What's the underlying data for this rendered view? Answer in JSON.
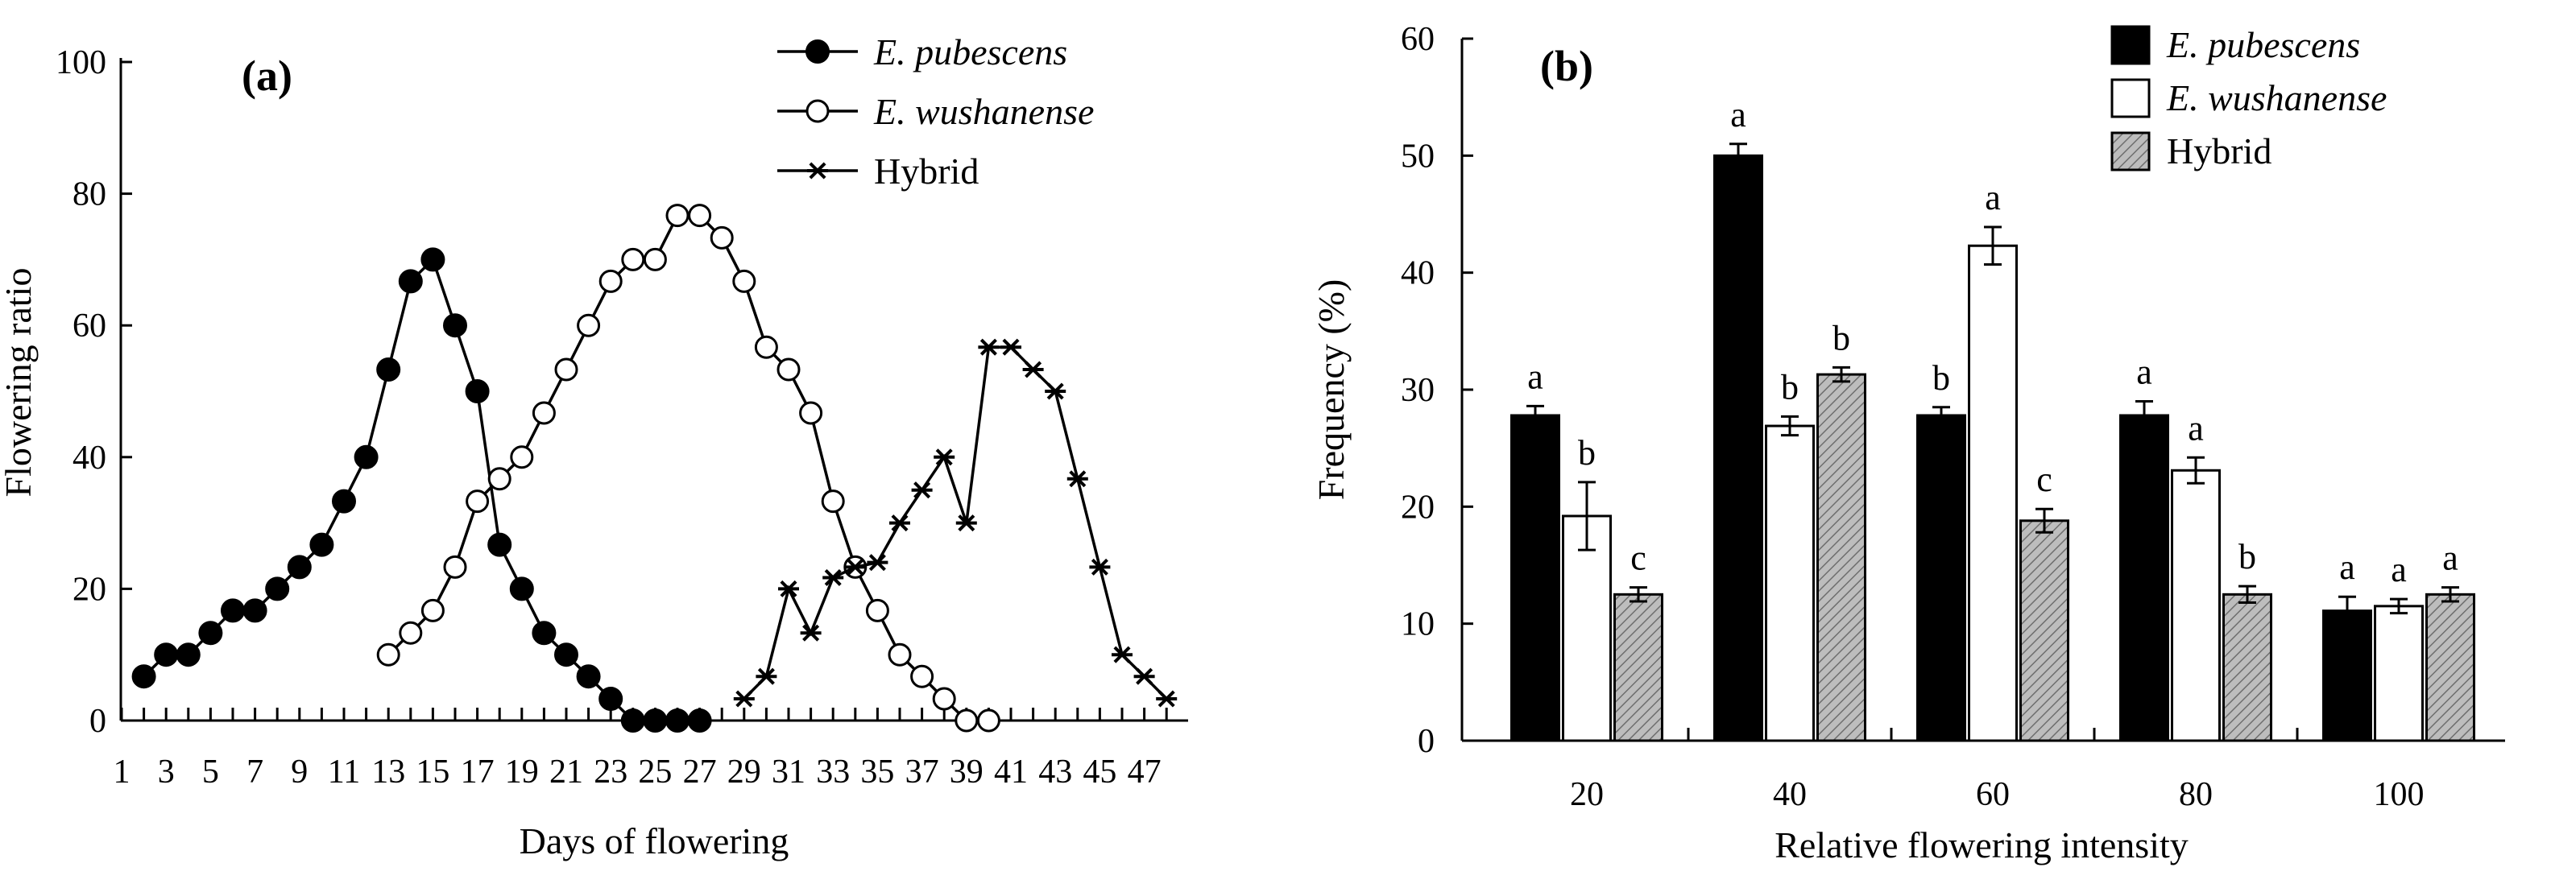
{
  "chart_data": [
    {
      "type": "line",
      "panel_label": "(a)",
      "xlabel": "Days of flowering",
      "ylabel": "Flowering  ratio",
      "xlim": [
        1,
        48
      ],
      "ylim": [
        0,
        100
      ],
      "x_ticks": [
        1,
        3,
        5,
        7,
        9,
        11,
        13,
        15,
        17,
        19,
        21,
        23,
        25,
        27,
        29,
        31,
        33,
        35,
        37,
        39,
        41,
        43,
        45,
        47
      ],
      "y_ticks": [
        0,
        20,
        40,
        60,
        80,
        100
      ],
      "legend_position": "top-right",
      "series": [
        {
          "name": "E. pubescens",
          "marker": "filled-circle",
          "points": [
            [
              2,
              6.7
            ],
            [
              3,
              10
            ],
            [
              4,
              10
            ],
            [
              5,
              13.3
            ],
            [
              6,
              16.7
            ],
            [
              7,
              16.7
            ],
            [
              8,
              20
            ],
            [
              9,
              23.3
            ],
            [
              10,
              26.7
            ],
            [
              11,
              33.3
            ],
            [
              12,
              40
            ],
            [
              13,
              53.3
            ],
            [
              14,
              66.7
            ],
            [
              15,
              70
            ],
            [
              16,
              60
            ],
            [
              17,
              50
            ],
            [
              18,
              26.7
            ],
            [
              19,
              20
            ],
            [
              20,
              13.3
            ],
            [
              21,
              10
            ],
            [
              22,
              6.7
            ],
            [
              23,
              3.3
            ],
            [
              24,
              0
            ],
            [
              25,
              0
            ],
            [
              26,
              0
            ],
            [
              27,
              0
            ]
          ]
        },
        {
          "name": "E. wushanense",
          "marker": "open-circle",
          "points": [
            [
              13,
              10
            ],
            [
              14,
              13.3
            ],
            [
              15,
              16.7
            ],
            [
              16,
              23.3
            ],
            [
              17,
              33.3
            ],
            [
              18,
              36.7
            ],
            [
              19,
              40
            ],
            [
              20,
              46.7
            ],
            [
              21,
              53.3
            ],
            [
              22,
              60
            ],
            [
              23,
              66.7
            ],
            [
              24,
              70
            ],
            [
              25,
              70
            ],
            [
              26,
              76.7
            ],
            [
              27,
              76.7
            ],
            [
              28,
              73.3
            ],
            [
              29,
              66.7
            ],
            [
              30,
              56.7
            ],
            [
              31,
              53.3
            ],
            [
              32,
              46.7
            ],
            [
              33,
              33.3
            ],
            [
              34,
              23.3
            ],
            [
              35,
              16.7
            ],
            [
              36,
              10
            ],
            [
              37,
              6.7
            ],
            [
              38,
              3.3
            ],
            [
              39,
              0
            ],
            [
              40,
              0
            ]
          ]
        },
        {
          "name": "Hybrid",
          "marker": "asterisk",
          "points": [
            [
              29,
              3.3
            ],
            [
              30,
              6.7
            ],
            [
              31,
              20
            ],
            [
              32,
              13.3
            ],
            [
              33,
              21.7
            ],
            [
              34,
              23.3
            ],
            [
              35,
              24
            ],
            [
              36,
              30
            ],
            [
              37,
              35
            ],
            [
              38,
              40
            ],
            [
              39,
              30
            ],
            [
              40,
              56.7
            ],
            [
              41,
              56.7
            ],
            [
              42,
              53.3
            ],
            [
              43,
              50
            ],
            [
              44,
              36.7
            ],
            [
              45,
              23.3
            ],
            [
              46,
              10
            ],
            [
              47,
              6.7
            ],
            [
              48,
              3.3
            ]
          ]
        }
      ]
    },
    {
      "type": "bar",
      "panel_label": "(b)",
      "xlabel": "Relative flowering intensity",
      "ylabel": "Frequency (%)",
      "ylim": [
        0,
        60
      ],
      "y_ticks": [
        0,
        10,
        20,
        30,
        40,
        50,
        60
      ],
      "categories": [
        "20",
        "40",
        "60",
        "80",
        "100"
      ],
      "legend_position": "top-right",
      "series": [
        {
          "name": "E. pubescens",
          "fill": "#000000",
          "values": [
            27.8,
            50,
            27.8,
            27.8,
            11.1
          ],
          "errors": [
            0.8,
            1.0,
            0.7,
            1.2,
            1.2
          ],
          "significance": [
            "a",
            "a",
            "b",
            "a",
            "a"
          ]
        },
        {
          "name": "E. wushanense",
          "fill": "#ffffff",
          "values": [
            19.2,
            26.9,
            42.3,
            23.1,
            11.5
          ],
          "errors": [
            2.9,
            0.8,
            1.6,
            1.1,
            0.6
          ],
          "significance": [
            "b",
            "b",
            "a",
            "a",
            "a"
          ]
        },
        {
          "name": "Hybrid",
          "fill": "hatched-gray",
          "values": [
            12.5,
            31.3,
            18.8,
            12.5,
            12.5
          ],
          "errors": [
            0.6,
            0.6,
            1.0,
            0.7,
            0.6
          ],
          "significance": [
            "c",
            "b",
            "c",
            "b",
            "a"
          ]
        }
      ]
    }
  ]
}
